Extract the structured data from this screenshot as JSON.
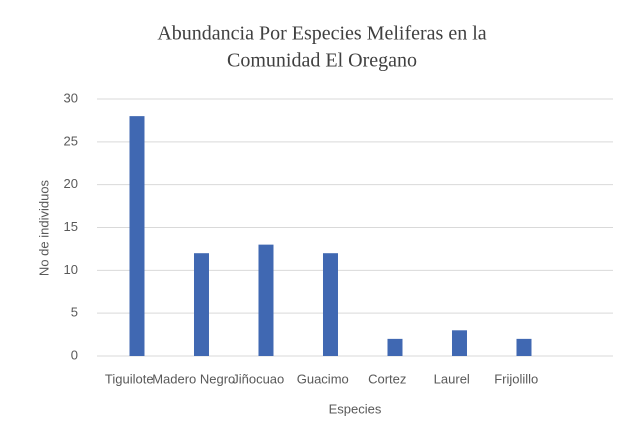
{
  "chart_data": {
    "type": "bar",
    "title": [
      "Abundancia Por Especies Meliferas en la",
      "Comunidad El Oregano"
    ],
    "x_label": "Especies",
    "y_label": "No de individuos",
    "categories": [
      "Tiguilote",
      "Madero Negro",
      "Jiñocuao",
      "Guacimo",
      "Cortez",
      "Laurel",
      "Frijolillo",
      null
    ],
    "values": [
      28,
      12,
      13,
      12,
      2,
      3,
      2,
      null
    ],
    "color": "#4068b2",
    "ylim": [
      0,
      30
    ],
    "yticks": [
      0,
      5,
      10,
      15,
      20,
      25,
      30
    ],
    "grid": true
  }
}
